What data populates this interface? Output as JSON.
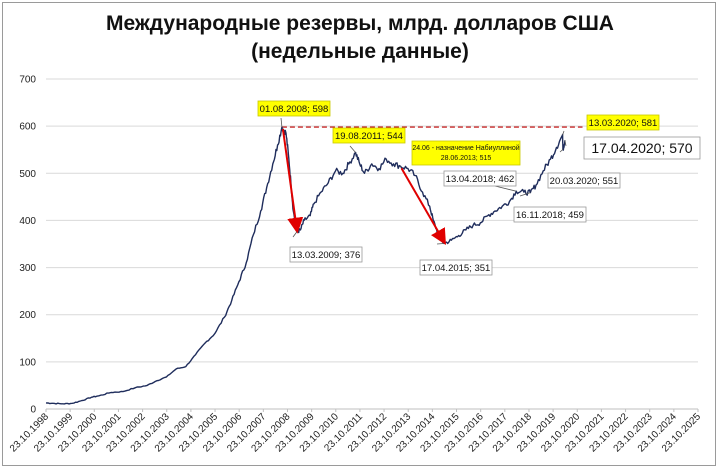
{
  "chart_data": {
    "type": "line",
    "title_line1": "Международные резервы, млрд. долларов США",
    "title_line2": "(недельные данные)",
    "ylim": [
      0,
      700
    ],
    "yticks": [
      0,
      100,
      200,
      300,
      400,
      500,
      600,
      700
    ],
    "xlim": [
      1998.81,
      2025.81
    ],
    "xticks": [
      "23.10.1998",
      "23.10.1999",
      "23.10.2000",
      "23.10.2001",
      "23.10.2002",
      "23.10.2003",
      "23.10.2004",
      "23.10.2005",
      "23.10.2006",
      "23.10.2007",
      "23.10.2008",
      "23.10.2009",
      "23.10.2010",
      "23.10.2011",
      "23.10.2012",
      "23.10.2013",
      "23.10.2014",
      "23.10.2015",
      "23.10.2016",
      "23.10.2017",
      "23.10.2018",
      "23.10.2019",
      "23.10.2020",
      "23.10.2021",
      "23.10.2022",
      "23.10.2023",
      "23.10.2024",
      "23.10.2025"
    ],
    "grid": "horizontal",
    "series": [
      {
        "color": "#1f2d5c",
        "points": [
          [
            1998.81,
            13
          ],
          [
            1999.1,
            12
          ],
          [
            1999.5,
            11
          ],
          [
            1999.9,
            12
          ],
          [
            2000.3,
            18
          ],
          [
            2000.7,
            25
          ],
          [
            2001.0,
            28
          ],
          [
            2001.5,
            35
          ],
          [
            2002.0,
            37
          ],
          [
            2002.5,
            45
          ],
          [
            2003.0,
            50
          ],
          [
            2003.4,
            60
          ],
          [
            2003.8,
            68
          ],
          [
            2004.2,
            85
          ],
          [
            2004.6,
            90
          ],
          [
            2005.0,
            115
          ],
          [
            2005.4,
            140
          ],
          [
            2005.8,
            160
          ],
          [
            2006.2,
            195
          ],
          [
            2006.5,
            230
          ],
          [
            2006.8,
            270
          ],
          [
            2007.1,
            310
          ],
          [
            2007.4,
            370
          ],
          [
            2007.7,
            420
          ],
          [
            2007.95,
            470
          ],
          [
            2008.2,
            520
          ],
          [
            2008.4,
            560
          ],
          [
            2008.58,
            598
          ],
          [
            2008.75,
            585
          ],
          [
            2008.85,
            540
          ],
          [
            2008.95,
            480
          ],
          [
            2009.05,
            420
          ],
          [
            2009.2,
            376
          ],
          [
            2009.35,
            380
          ],
          [
            2009.5,
            400
          ],
          [
            2009.75,
            410
          ],
          [
            2009.9,
            435
          ],
          [
            2010.2,
            460
          ],
          [
            2010.5,
            480
          ],
          [
            2010.8,
            505
          ],
          [
            2011.1,
            500
          ],
          [
            2011.35,
            520
          ],
          [
            2011.63,
            544
          ],
          [
            2011.8,
            520
          ],
          [
            2012.0,
            500
          ],
          [
            2012.3,
            520
          ],
          [
            2012.6,
            510
          ],
          [
            2012.9,
            530
          ],
          [
            2013.2,
            520
          ],
          [
            2013.49,
            515
          ],
          [
            2013.8,
            510
          ],
          [
            2014.1,
            495
          ],
          [
            2014.4,
            460
          ],
          [
            2014.7,
            430
          ],
          [
            2014.85,
            400
          ],
          [
            2015.05,
            370
          ],
          [
            2015.29,
            351
          ],
          [
            2015.6,
            358
          ],
          [
            2015.9,
            368
          ],
          [
            2016.2,
            380
          ],
          [
            2016.5,
            390
          ],
          [
            2016.8,
            395
          ],
          [
            2017.1,
            410
          ],
          [
            2017.4,
            420
          ],
          [
            2017.7,
            430
          ],
          [
            2018.0,
            440
          ],
          [
            2018.28,
            462
          ],
          [
            2018.6,
            460
          ],
          [
            2018.87,
            459
          ],
          [
            2019.1,
            475
          ],
          [
            2019.4,
            505
          ],
          [
            2019.7,
            530
          ],
          [
            2019.95,
            555
          ],
          [
            2020.2,
            581
          ],
          [
            2020.22,
            551
          ],
          [
            2020.3,
            570
          ]
        ]
      }
    ],
    "annotations": [
      {
        "text": "01.08.2008; 598",
        "x": 2008.58,
        "y": 598,
        "highlight": true
      },
      {
        "text": "13.03.2009; 376",
        "x": 2009.2,
        "y": 376,
        "highlight": false
      },
      {
        "text": "19.08.2011; 544",
        "x": 2011.63,
        "y": 544,
        "highlight": true
      },
      {
        "text_line1": "24.06 - назначение Набиуллиной",
        "text_line2": "28.06.2013;  515",
        "x": 2013.49,
        "y": 515,
        "highlight": true
      },
      {
        "text": "17.04.2015; 351",
        "x": 2015.29,
        "y": 351,
        "highlight": false
      },
      {
        "text": "13.04.2018; 462",
        "x": 2018.28,
        "y": 462,
        "highlight": false
      },
      {
        "text": "16.11.2018; 459",
        "x": 2018.87,
        "y": 459,
        "highlight": false
      },
      {
        "text": "20.03.2020; 551",
        "x": 2020.22,
        "y": 551,
        "highlight": false
      },
      {
        "text": "13.03.2020; 581",
        "x": 2020.2,
        "y": 581,
        "highlight": true
      },
      {
        "text": "17.04.2020; 570",
        "x": 2020.3,
        "y": 570,
        "highlight": false,
        "big": true
      }
    ],
    "reference_line": {
      "y": 598,
      "color": "#c00000",
      "style": "dashed"
    },
    "drops": [
      {
        "from": [
          2008.58,
          598
        ],
        "to": [
          2009.2,
          376
        ]
      },
      {
        "from": [
          2013.49,
          515
        ],
        "to": [
          2015.29,
          351
        ]
      }
    ]
  }
}
